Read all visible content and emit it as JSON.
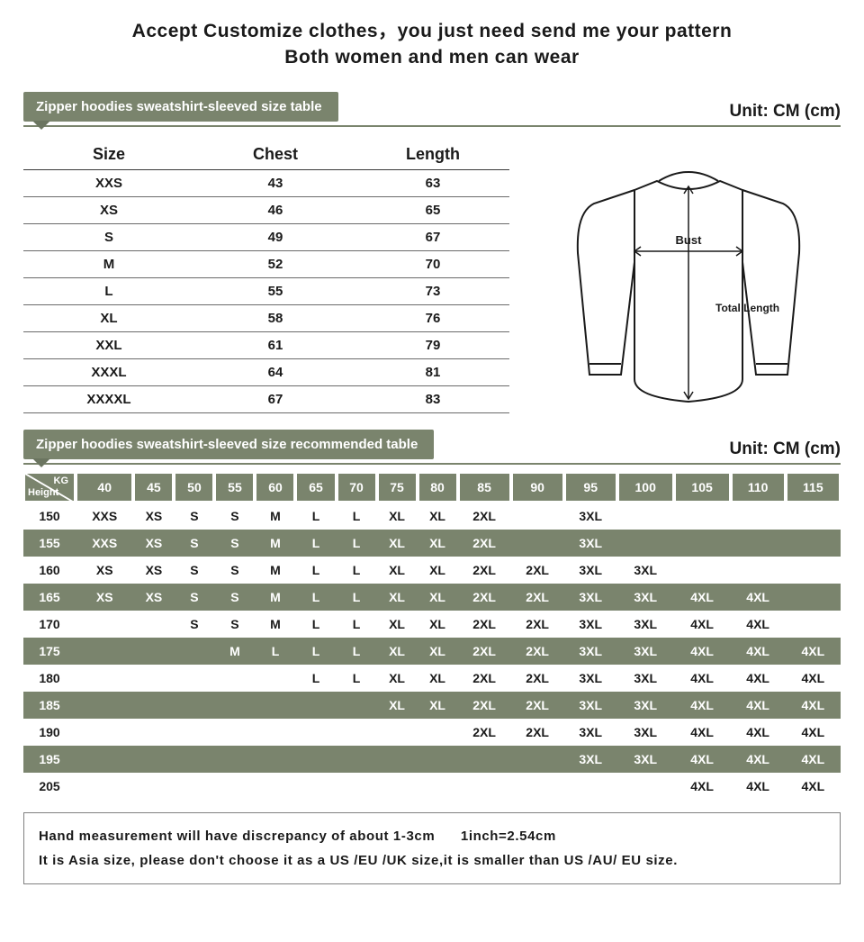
{
  "headline": "Accept Customize clothes，you just need send me your pattern",
  "subhead": "Both women and men can wear",
  "unit_label": "Unit: CM (cm)",
  "colors": {
    "olive": "#7a846d",
    "olive_dark": "#6b7560",
    "text": "#1a1a1a",
    "border_gray": "#808080",
    "row_border": "#6a6a6a",
    "bg": "#ffffff"
  },
  "section1": {
    "tab": "Zipper hoodies sweatshirt-sleeved size table",
    "columns": [
      "Size",
      "Chest",
      "Length"
    ],
    "rows": [
      [
        "XXS",
        "43",
        "63"
      ],
      [
        "XS",
        "46",
        "65"
      ],
      [
        "S",
        "49",
        "67"
      ],
      [
        "M",
        "52",
        "70"
      ],
      [
        "L",
        "55",
        "73"
      ],
      [
        "XL",
        "58",
        "76"
      ],
      [
        "XXL",
        "61",
        "79"
      ],
      [
        "XXXL",
        "64",
        "81"
      ],
      [
        "XXXXL",
        "67",
        "83"
      ]
    ],
    "diagram": {
      "bust_label": "Bust",
      "length_label": "Total Length"
    }
  },
  "section2": {
    "tab": "Zipper hoodies sweatshirt-sleeved size recommended table",
    "corner_kg": "KG",
    "corner_height": "Height",
    "kg_headers": [
      "40",
      "45",
      "50",
      "55",
      "60",
      "65",
      "70",
      "75",
      "80",
      "85",
      "90",
      "95",
      "100",
      "105",
      "110",
      "115"
    ],
    "rows": [
      {
        "h": "150",
        "v": [
          "XXS",
          "XS",
          "S",
          "S",
          "M",
          "L",
          "L",
          "XL",
          "XL",
          "2XL",
          "",
          "3XL",
          "",
          "",
          "",
          ""
        ]
      },
      {
        "h": "155",
        "v": [
          "XXS",
          "XS",
          "S",
          "S",
          "M",
          "L",
          "L",
          "XL",
          "XL",
          "2XL",
          "",
          "3XL",
          "",
          "",
          "",
          ""
        ]
      },
      {
        "h": "160",
        "v": [
          "XS",
          "XS",
          "S",
          "S",
          "M",
          "L",
          "L",
          "XL",
          "XL",
          "2XL",
          "2XL",
          "3XL",
          "3XL",
          "",
          "",
          ""
        ]
      },
      {
        "h": "165",
        "v": [
          "XS",
          "XS",
          "S",
          "S",
          "M",
          "L",
          "L",
          "XL",
          "XL",
          "2XL",
          "2XL",
          "3XL",
          "3XL",
          "4XL",
          "4XL",
          ""
        ]
      },
      {
        "h": "170",
        "v": [
          "",
          "",
          "S",
          "S",
          "M",
          "L",
          "L",
          "XL",
          "XL",
          "2XL",
          "2XL",
          "3XL",
          "3XL",
          "4XL",
          "4XL",
          ""
        ]
      },
      {
        "h": "175",
        "v": [
          "",
          "",
          "",
          "M",
          "L",
          "L",
          "L",
          "XL",
          "XL",
          "2XL",
          "2XL",
          "3XL",
          "3XL",
          "4XL",
          "4XL",
          "4XL"
        ]
      },
      {
        "h": "180",
        "v": [
          "",
          "",
          "",
          "",
          "",
          "L",
          "L",
          "XL",
          "XL",
          "2XL",
          "2XL",
          "3XL",
          "3XL",
          "4XL",
          "4XL",
          "4XL"
        ]
      },
      {
        "h": "185",
        "v": [
          "",
          "",
          "",
          "",
          "",
          "",
          "",
          "XL",
          "XL",
          "2XL",
          "2XL",
          "3XL",
          "3XL",
          "4XL",
          "4XL",
          "4XL"
        ]
      },
      {
        "h": "190",
        "v": [
          "",
          "",
          "",
          "",
          "",
          "",
          "",
          "",
          "",
          "2XL",
          "2XL",
          "3XL",
          "3XL",
          "4XL",
          "4XL",
          "4XL"
        ]
      },
      {
        "h": "195",
        "v": [
          "",
          "",
          "",
          "",
          "",
          "",
          "",
          "",
          "",
          "",
          "",
          "3XL",
          "3XL",
          "4XL",
          "4XL",
          "4XL"
        ]
      },
      {
        "h": "205",
        "v": [
          "",
          "",
          "",
          "",
          "",
          "",
          "",
          "",
          "",
          "",
          "",
          "",
          "",
          "4XL",
          "4XL",
          "4XL"
        ]
      }
    ],
    "row_stripe_start": "white"
  },
  "notes": {
    "line1a": "Hand measurement will have discrepancy of about 1-3cm",
    "line1b": "1inch=2.54cm",
    "line2": "It is Asia size, please don't choose it as a US /EU /UK size,it is smaller than US /AU/ EU size."
  }
}
